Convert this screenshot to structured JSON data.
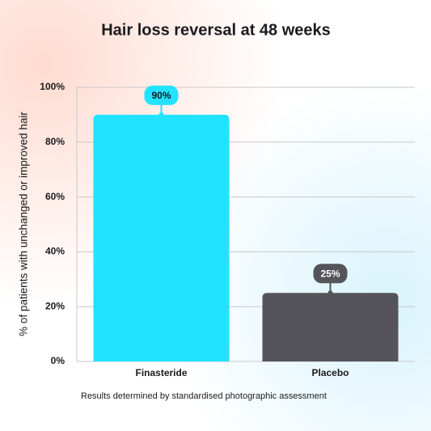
{
  "chart_data": {
    "type": "bar",
    "title": "Hair loss reversal at 48 weeks",
    "y_label": "% of patients with unchanged or improved hair",
    "footnote": "Results determined by standardised photographic assessment",
    "categories": [
      "Finasteride",
      "Placebo"
    ],
    "values": [
      90,
      25
    ],
    "value_labels": [
      "90%",
      "25%"
    ],
    "colors": [
      "#22e3ff",
      "#55545b"
    ],
    "ylim": [
      0,
      100
    ],
    "yticks": [
      {
        "value": 0,
        "label": "0%"
      },
      {
        "value": 20,
        "label": "20%"
      },
      {
        "value": 40,
        "label": "40%"
      },
      {
        "value": 60,
        "label": "60%"
      },
      {
        "value": 80,
        "label": "80%"
      },
      {
        "value": 100,
        "label": "100%"
      }
    ],
    "grid": true
  }
}
